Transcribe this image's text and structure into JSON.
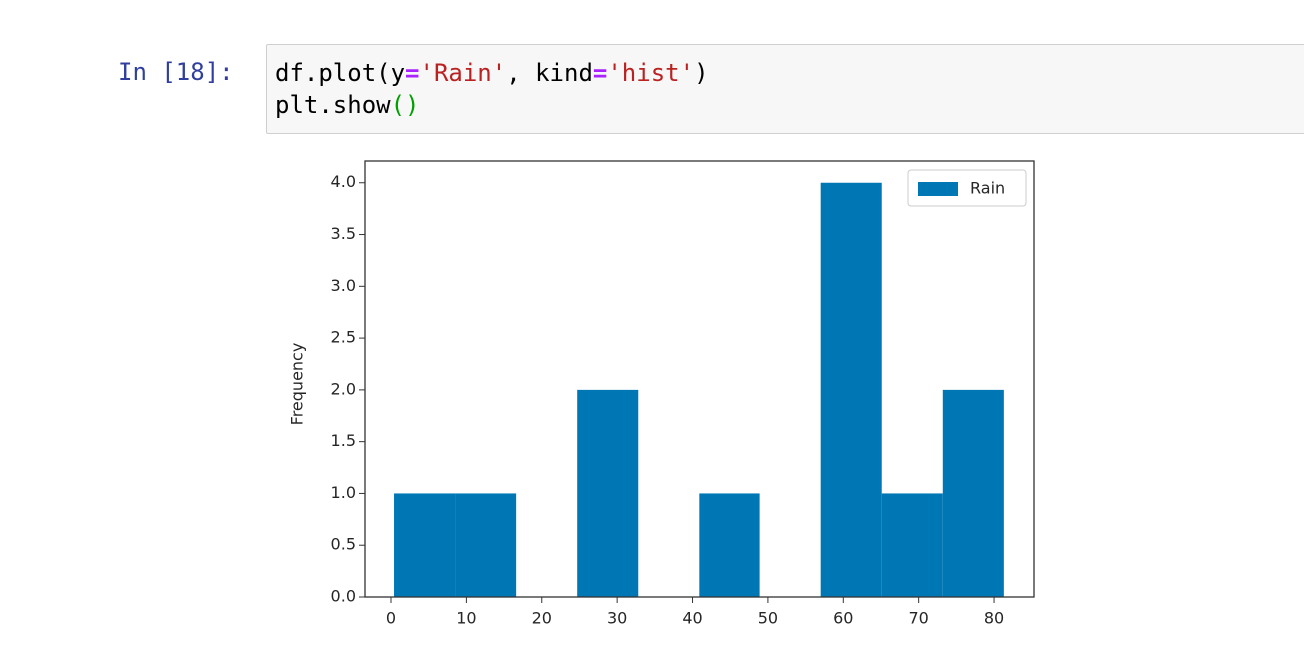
{
  "cell": {
    "prompt": "In [18]:",
    "code": [
      [
        {
          "text": "df.plot(y",
          "color": "#000000"
        },
        {
          "text": "=",
          "color": "#aa22ff"
        },
        {
          "text": "'Rain'",
          "color": "#ba2121"
        },
        {
          "text": ", kind",
          "color": "#000000"
        },
        {
          "text": "=",
          "color": "#aa22ff"
        },
        {
          "text": "'hist'",
          "color": "#ba2121"
        },
        {
          "text": ")",
          "color": "#000000"
        }
      ],
      [
        {
          "text": "plt.show",
          "color": "#000000"
        },
        {
          "text": "()",
          "color": "#00a000"
        }
      ]
    ]
  },
  "chart_data": {
    "type": "histogram",
    "ylabel": "Frequency",
    "bins": [
      0.4,
      8.5,
      16.6,
      24.7,
      32.8,
      40.9,
      48.9,
      57.0,
      65.1,
      73.2,
      81.3
    ],
    "series": [
      {
        "name": "Rain",
        "color": "#0077b5",
        "values": [
          1,
          1,
          0,
          2,
          0,
          1,
          0,
          4,
          1,
          2
        ]
      }
    ],
    "xlim": [
      -3.45,
      85.3
    ],
    "ylim": [
      0,
      4.21
    ],
    "xticks": [
      0,
      10,
      20,
      30,
      40,
      50,
      60,
      70,
      80
    ],
    "yticks": [
      {
        "value": 0,
        "label": "0.0"
      },
      {
        "value": 0.5,
        "label": "0.5"
      },
      {
        "value": 1,
        "label": "1.0"
      },
      {
        "value": 1.5,
        "label": "1.5"
      },
      {
        "value": 2,
        "label": "2.0"
      },
      {
        "value": 2.5,
        "label": "2.5"
      },
      {
        "value": 3,
        "label": "3.0"
      },
      {
        "value": 3.5,
        "label": "3.5"
      },
      {
        "value": 4,
        "label": "4.0"
      }
    ],
    "grid": false,
    "legend": "upper-right"
  }
}
